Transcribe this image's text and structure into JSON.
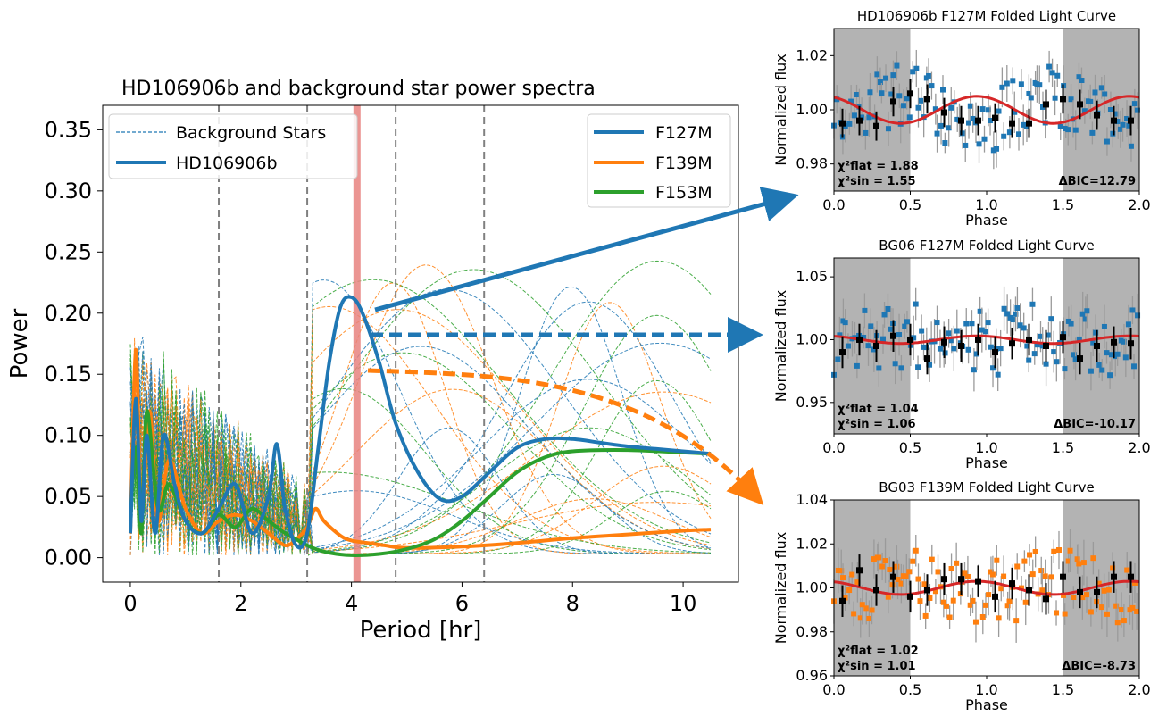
{
  "chart_data": [
    {
      "type": "line",
      "title": "HD106906b and background star power spectra",
      "xlabel": "Period [hr]",
      "ylabel": "Power",
      "xlim": [
        -0.5,
        11
      ],
      "ylim": [
        -0.02,
        0.37
      ],
      "x_ticks": [
        0,
        2,
        4,
        6,
        8,
        10
      ],
      "y_ticks": [
        "0.00",
        "0.05",
        "0.10",
        "0.15",
        "0.20",
        "0.25",
        "0.30",
        "0.35"
      ],
      "legend_linestyle": [
        {
          "name": "Background Stars",
          "style": "dashed"
        },
        {
          "name": "HD106906b",
          "style": "solid"
        }
      ],
      "legend_filters": [
        {
          "name": "F127M",
          "color": "#1f77b4"
        },
        {
          "name": "F139M",
          "color": "#ff7f0e"
        },
        {
          "name": "F153M",
          "color": "#2ca02c"
        }
      ],
      "vlines": [
        1.6,
        3.2,
        4.8,
        6.4
      ],
      "highlight_period": 4.1,
      "series": [
        {
          "name": "F127M",
          "color": "#1f77b4",
          "x": [
            0.0,
            0.1,
            0.2,
            0.3,
            0.45,
            0.6,
            0.8,
            1.0,
            1.3,
            1.6,
            1.9,
            2.2,
            2.5,
            2.65,
            2.8,
            3.0,
            3.2,
            3.4,
            3.6,
            3.8,
            4.0,
            4.2,
            4.5,
            4.8,
            5.2,
            5.6,
            6.0,
            6.5,
            7.0,
            7.5,
            8.0,
            8.5,
            9.0,
            9.5,
            10.0,
            10.5
          ],
          "y": [
            0.02,
            0.13,
            0.03,
            0.1,
            0.02,
            0.1,
            0.06,
            0.03,
            0.02,
            0.04,
            0.06,
            0.02,
            0.05,
            0.093,
            0.04,
            0.01,
            0.02,
            0.09,
            0.16,
            0.205,
            0.213,
            0.2,
            0.16,
            0.11,
            0.07,
            0.048,
            0.05,
            0.07,
            0.09,
            0.097,
            0.097,
            0.094,
            0.091,
            0.089,
            0.087,
            0.085
          ]
        },
        {
          "name": "F139M",
          "color": "#ff7f0e",
          "x": [
            0.0,
            0.1,
            0.2,
            0.35,
            0.5,
            0.7,
            1.0,
            1.3,
            1.6,
            1.9,
            2.2,
            2.5,
            2.8,
            3.0,
            3.2,
            3.35,
            3.5,
            3.8,
            4.0,
            4.3,
            4.6,
            5.0,
            6.0,
            7.0,
            8.0,
            9.0,
            10.0,
            10.5
          ],
          "y": [
            0.02,
            0.17,
            0.04,
            0.12,
            0.03,
            0.08,
            0.04,
            0.02,
            0.03,
            0.035,
            0.03,
            0.02,
            0.01,
            0.015,
            0.025,
            0.04,
            0.03,
            0.018,
            0.014,
            0.012,
            0.01,
            0.008,
            0.009,
            0.012,
            0.016,
            0.019,
            0.022,
            0.023
          ]
        },
        {
          "name": "F153M",
          "color": "#2ca02c",
          "x": [
            0.0,
            0.1,
            0.2,
            0.3,
            0.5,
            0.7,
            1.0,
            1.3,
            1.6,
            1.9,
            2.2,
            2.5,
            2.8,
            3.0,
            3.3,
            3.6,
            4.0,
            4.5,
            5.0,
            5.5,
            6.0,
            6.5,
            7.0,
            7.5,
            8.0,
            9.0,
            10.0,
            10.5
          ],
          "y": [
            0.03,
            0.09,
            0.02,
            0.12,
            0.04,
            0.06,
            0.03,
            0.02,
            0.035,
            0.025,
            0.04,
            0.03,
            0.02,
            0.015,
            0.008,
            0.004,
            0.002,
            0.003,
            0.007,
            0.015,
            0.03,
            0.05,
            0.07,
            0.082,
            0.087,
            0.088,
            0.086,
            0.085
          ]
        }
      ]
    },
    {
      "type": "scatter",
      "title": "HD106906b F127M Folded Light Curve",
      "xlabel": "Phase",
      "ylabel": "Normalized flux",
      "xlim": [
        0.0,
        2.0
      ],
      "ylim": [
        0.97,
        1.03
      ],
      "x_ticks": [
        "0.0",
        "0.5",
        "1.0",
        "1.5",
        "2.0"
      ],
      "y_ticks": [
        "0.98",
        "1.00",
        "1.02"
      ],
      "point_color": "#1f77b4",
      "chi_flat_label": "χ²flat",
      "chi_flat_value": "= 1.88",
      "chi_sin_label": "χ²sin",
      "chi_sin_value": "= 1.55",
      "delta_bic": "ΔBIC=12.79",
      "model_amplitude": 0.005,
      "binned_y": [
        0.995,
        0.996,
        0.994,
        1.003,
        1.006,
        1.004,
        0.999,
        0.996,
        0.996,
        0.997,
        0.995,
        0.995,
        1.002,
        1.004,
        1.002,
        0.998,
        0.996,
        0.996
      ]
    },
    {
      "type": "scatter",
      "title": "BG06 F127M Folded Light Curve",
      "xlabel": "Phase",
      "ylabel": "Normalized flux",
      "xlim": [
        0.0,
        2.0
      ],
      "ylim": [
        0.925,
        1.065
      ],
      "x_ticks": [
        "0.0",
        "0.5",
        "1.0",
        "1.5",
        "2.0"
      ],
      "y_ticks": [
        "0.95",
        "1.00",
        "1.05"
      ],
      "point_color": "#1f77b4",
      "chi_flat_label": "χ²flat",
      "chi_flat_value": "= 1.04",
      "chi_sin_label": "χ²sin",
      "chi_sin_value": "= 1.06",
      "delta_bic": "ΔBIC=-10.17",
      "model_amplitude": 0.003,
      "binned_y": [
        0.99,
        1.0,
        0.995,
        1.003,
        1.0,
        0.985,
        0.998,
        0.995,
        1.0,
        0.99,
        0.997,
        1.0,
        0.995,
        1.002,
        0.985,
        0.995,
        0.998,
        0.997
      ]
    },
    {
      "type": "scatter",
      "title": "BG03 F139M Folded Light Curve",
      "xlabel": "Phase",
      "ylabel": "Normalized flux",
      "xlim": [
        0.0,
        2.0
      ],
      "ylim": [
        0.96,
        1.04
      ],
      "x_ticks": [
        "0.0",
        "0.5",
        "1.0",
        "1.5",
        "2.0"
      ],
      "y_ticks": [
        "0.96",
        "0.98",
        "1.00",
        "1.02",
        "1.04"
      ],
      "point_color": "#ff7f0e",
      "chi_flat_label": "χ²flat",
      "chi_flat_value": "= 1.02",
      "chi_sin_label": "χ²sin",
      "chi_sin_value": "= 1.01",
      "delta_bic": "ΔBIC=-8.73",
      "model_amplitude": 0.003,
      "binned_y": [
        0.994,
        1.008,
        0.999,
        1.005,
        0.996,
        0.999,
        1.004,
        1.004,
        1.003,
        0.996,
        1.002,
        0.999,
        0.995,
        1.005,
        0.998,
        0.998,
        1.005,
        1.005
      ]
    }
  ]
}
